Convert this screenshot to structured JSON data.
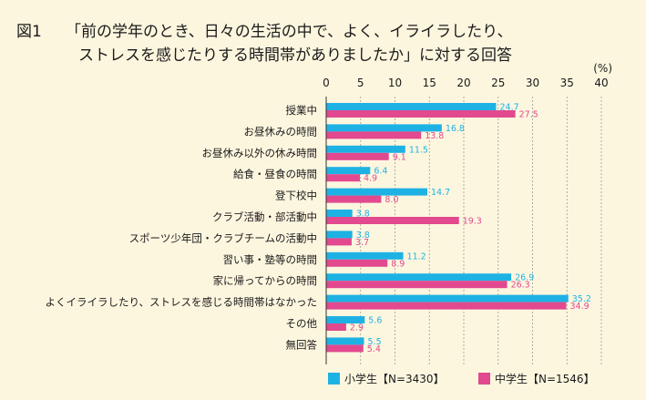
{
  "title": {
    "fig_label": "図1",
    "line1": "「前の学年のとき、日々の生活の中で、よく、イライラしたり、",
    "line2": "ストレスを感じたりする時間帯がありましたか」に対する回答"
  },
  "colors": {
    "elementary": "#1eb2e4",
    "junior_high": "#e2498e",
    "background": "#fdf6df",
    "grid": "#999999"
  },
  "chart_data": {
    "type": "bar",
    "orientation": "horizontal",
    "unit": "(%)",
    "xlim": [
      0,
      40
    ],
    "xticks": [
      0,
      5,
      10,
      15,
      20,
      25,
      30,
      35,
      40
    ],
    "categories": [
      "授業中",
      "お昼休みの時間",
      "お昼休み以外の休み時間",
      "給食・昼食の時間",
      "登下校中",
      "クラブ活動・部活動中",
      "スポーツ少年団・クラブチームの活動中",
      "習い事・塾等の時間",
      "家に帰ってからの時間",
      "よくイライラしたり、ストレスを感じる時間帯はなかった",
      "その他",
      "無回答"
    ],
    "series": [
      {
        "name": "小学生【N=3430】",
        "values": [
          24.7,
          16.8,
          11.5,
          6.4,
          14.7,
          3.8,
          3.8,
          11.2,
          26.9,
          35.2,
          5.6,
          5.5
        ]
      },
      {
        "name": "中学生【N=1546】",
        "values": [
          27.5,
          13.8,
          9.1,
          4.9,
          8.0,
          19.3,
          3.7,
          8.9,
          26.3,
          34.9,
          2.9,
          5.4
        ]
      }
    ],
    "legend_position": "bottom-right"
  }
}
